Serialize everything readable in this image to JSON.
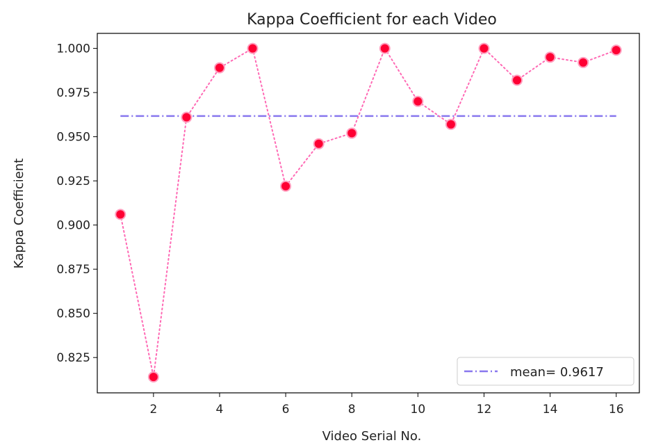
{
  "chart_data": {
    "type": "line",
    "title": "Kappa Coefficient for each Video",
    "xlabel": "Video Serial No.",
    "ylabel": "Kappa Coefficient",
    "x": [
      1,
      2,
      3,
      4,
      5,
      6,
      7,
      8,
      9,
      10,
      11,
      12,
      13,
      14,
      15,
      16
    ],
    "series": [
      {
        "values": [
          0.906,
          0.814,
          0.961,
          0.989,
          1.0,
          0.922,
          0.946,
          0.952,
          1.0,
          0.97,
          0.957,
          1.0,
          0.982,
          0.995,
          0.992,
          0.999
        ],
        "color": "#ff69b4",
        "marker_color": "#ff0033",
        "line_style": "dotted"
      }
    ],
    "mean_line": {
      "value": 0.9617,
      "label": "mean= 0.9617",
      "color": "#8877ee",
      "line_style": "dash-dot"
    },
    "xlim": [
      0.3,
      16.7
    ],
    "ylim": [
      0.805,
      1.0085
    ],
    "xticks": [
      2,
      4,
      6,
      8,
      10,
      12,
      14,
      16
    ],
    "yticks": [
      0.825,
      0.85,
      0.875,
      0.9,
      0.925,
      0.95,
      0.975,
      1.0
    ],
    "ytick_labels": [
      "0.825",
      "0.850",
      "0.875",
      "0.900",
      "0.925",
      "0.950",
      "0.975",
      "1.000"
    ],
    "legend": "lower-right",
    "grid": false
  }
}
